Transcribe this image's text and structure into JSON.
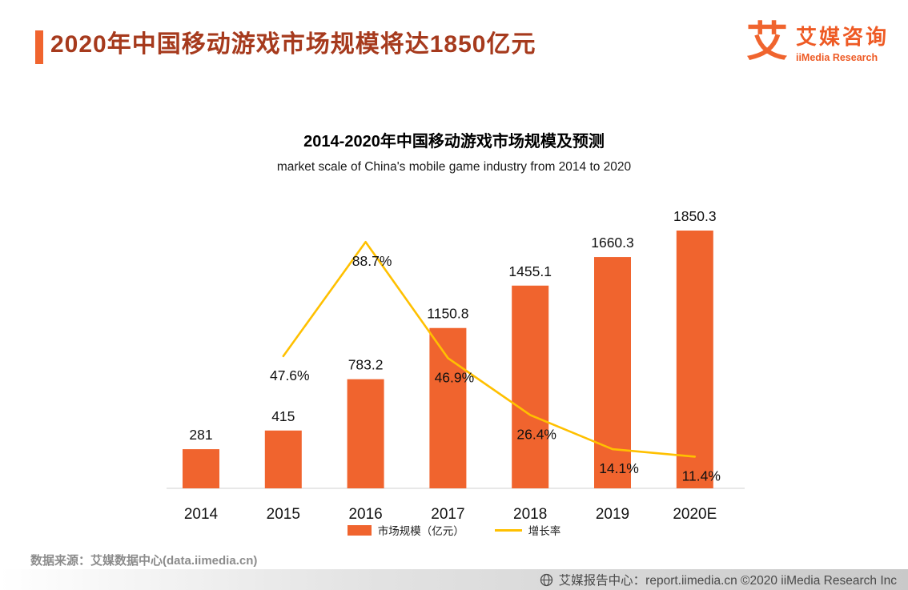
{
  "header": {
    "title": "2020年中国移动游戏市场规模将达1850亿元",
    "accent_color": "#F0642E",
    "title_color": "#A63A1D",
    "brand": {
      "logo_glyph": "艾",
      "name": "艾媒咨询",
      "subtitle": "iiMedia Research",
      "color": "#EE5A24"
    }
  },
  "chart_data": {
    "type": "bar",
    "title": "2014-2020年中国移动游戏市场规模及预测",
    "subtitle": "market scale of China's mobile game industry from 2014 to 2020",
    "categories": [
      "2014",
      "2015",
      "2016",
      "2017",
      "2018",
      "2019",
      "2020E"
    ],
    "series": [
      {
        "name": "市场规模（亿元）",
        "type": "bar",
        "color": "#F0642E",
        "values": [
          281,
          415,
          783.2,
          1150.8,
          1455.1,
          1660.3,
          1850.3
        ],
        "labels": [
          "281",
          "415",
          "783.2",
          "1150.8",
          "1455.1",
          "1660.3",
          "1850.3"
        ]
      },
      {
        "name": "增长率",
        "type": "line",
        "color": "#FFC000",
        "values": [
          null,
          47.6,
          88.7,
          46.9,
          26.4,
          14.1,
          11.4
        ],
        "labels": [
          "",
          "47.6%",
          "88.7%",
          "46.9%",
          "26.4%",
          "14.1%",
          "11.4%"
        ]
      }
    ],
    "ylim": [
      0,
      2000
    ],
    "line_ylim_pct": [
      0,
      110
    ],
    "grid": false,
    "legend_position": "bottom"
  },
  "source": "数据来源：艾媒数据中心(data.iimedia.cn)",
  "footer": {
    "text": "艾媒报告中心：report.iimedia.cn  ©2020  iiMedia Research Inc"
  }
}
